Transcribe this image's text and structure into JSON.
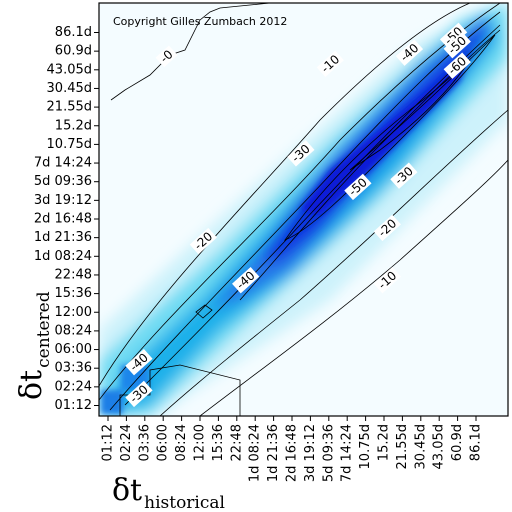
{
  "chart_data": {
    "type": "heatmap",
    "annotation": "Copyright Gilles Zumbach 2012",
    "xlabel": {
      "symbol": "δt",
      "subscript": "historical"
    },
    "ylabel": {
      "symbol": "δt",
      "subscript": "centered"
    },
    "x_ticks": [
      "01:12",
      "02:24",
      "03:36",
      "06:00",
      "08:24",
      "12:00",
      "15:36",
      "22:48",
      "1d 08:24",
      "1d 21:36",
      "2d 16:48",
      "3d 19:12",
      "5d 09:36",
      "7d 14:24",
      "10.75d",
      "15.2d",
      "21.55d",
      "30.45d",
      "43.05d",
      "60.9d",
      "86.1d"
    ],
    "y_ticks": [
      "01:12",
      "02:24",
      "03:36",
      "06:00",
      "08:24",
      "12:00",
      "15:36",
      "22:48",
      "1d 08:24",
      "1d 21:36",
      "2d 16:48",
      "3d 19:12",
      "5d 09:36",
      "7d 14:24",
      "10.75d",
      "15.2d",
      "21.55d",
      "30.45d",
      "43.05d",
      "60.9d",
      "86.1d"
    ],
    "contour_labels": [
      {
        "text": "-0",
        "x": 3.2,
        "y": 18.7
      },
      {
        "text": "-10",
        "x": 12.1,
        "y": 18.3
      },
      {
        "text": "-40",
        "x": 16.4,
        "y": 18.9
      },
      {
        "text": "-50",
        "x": 18.8,
        "y": 19.8
      },
      {
        "text": "-50",
        "x": 19.0,
        "y": 19.3
      },
      {
        "text": "-60",
        "x": 19.0,
        "y": 18.2
      },
      {
        "text": "-30",
        "x": 10.5,
        "y": 13.5
      },
      {
        "text": "-50",
        "x": 13.6,
        "y": 11.7
      },
      {
        "text": "-30",
        "x": 16.1,
        "y": 12.3
      },
      {
        "text": "-20",
        "x": 15.2,
        "y": 9.5
      },
      {
        "text": "-10",
        "x": 15.2,
        "y": 6.7
      },
      {
        "text": "-20",
        "x": 5.2,
        "y": 8.8
      },
      {
        "text": "-40",
        "x": 7.5,
        "y": 6.7
      },
      {
        "text": "-40",
        "x": 1.7,
        "y": 2.3
      },
      {
        "text": "-30",
        "x": 1.7,
        "y": 0.6
      }
    ]
  }
}
